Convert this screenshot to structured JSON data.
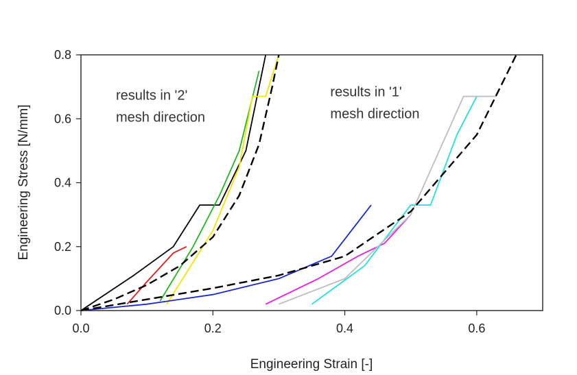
{
  "chart_data": {
    "type": "line",
    "xlabel": "Engineering Strain [-]",
    "ylabel": "Engineering Stress [N/mm]",
    "xlim": [
      0.0,
      0.7
    ],
    "ylim": [
      0.0,
      0.8
    ],
    "xticks": [
      "0.0",
      "0.2",
      "0.4",
      "0.6"
    ],
    "xtick_values": [
      0.0,
      0.2,
      0.4,
      0.6
    ],
    "yticks": [
      "0.0",
      "0.2",
      "0.4",
      "0.6",
      "0.8"
    ],
    "ytick_values": [
      0.0,
      0.2,
      0.4,
      0.6,
      0.8
    ],
    "grid": false,
    "annotations": [
      {
        "lines": [
          "results in '2'",
          "mesh direction"
        ],
        "x": 0.053,
        "y": 0.66
      },
      {
        "lines": [
          "results in '1'",
          "mesh direction"
        ],
        "x": 0.378,
        "y": 0.67
      }
    ],
    "series": [
      {
        "color": "#000000",
        "dash": true,
        "points": [
          [
            0,
            0
          ],
          [
            0.05,
            0.035
          ],
          [
            0.1,
            0.08
          ],
          [
            0.15,
            0.14
          ],
          [
            0.2,
            0.23
          ],
          [
            0.24,
            0.36
          ],
          [
            0.27,
            0.52
          ],
          [
            0.29,
            0.7
          ],
          [
            0.3,
            0.8
          ]
        ]
      },
      {
        "color": "#000000",
        "dash": true,
        "points": [
          [
            0,
            0
          ],
          [
            0.1,
            0.035
          ],
          [
            0.2,
            0.07
          ],
          [
            0.3,
            0.11
          ],
          [
            0.4,
            0.17
          ],
          [
            0.5,
            0.31
          ],
          [
            0.6,
            0.55
          ],
          [
            0.66,
            0.8
          ]
        ]
      },
      {
        "color": "#000000",
        "points": [
          [
            0,
            0
          ],
          [
            0.08,
            0.11
          ],
          [
            0.14,
            0.2
          ],
          [
            0.18,
            0.33
          ],
          [
            0.19,
            0.33
          ],
          [
            0.21,
            0.33
          ],
          [
            0.25,
            0.5
          ],
          [
            0.28,
            0.8
          ]
        ]
      },
      {
        "color": "#e31b1b",
        "points": [
          [
            0.07,
            0.02
          ],
          [
            0.1,
            0.09
          ],
          [
            0.14,
            0.18
          ],
          [
            0.16,
            0.2
          ]
        ]
      },
      {
        "color": "#22b522",
        "points": [
          [
            0.12,
            0.03
          ],
          [
            0.17,
            0.2
          ],
          [
            0.21,
            0.36
          ],
          [
            0.24,
            0.5
          ],
          [
            0.27,
            0.75
          ]
        ]
      },
      {
        "color": "#f2e600",
        "points": [
          [
            0.13,
            0.02
          ],
          [
            0.2,
            0.25
          ],
          [
            0.24,
            0.45
          ],
          [
            0.26,
            0.67
          ],
          [
            0.28,
            0.67
          ],
          [
            0.3,
            0.8
          ]
        ]
      },
      {
        "color": "#1a28d4",
        "points": [
          [
            0,
            0
          ],
          [
            0.1,
            0.02
          ],
          [
            0.2,
            0.05
          ],
          [
            0.3,
            0.1
          ],
          [
            0.38,
            0.17
          ],
          [
            0.44,
            0.33
          ]
        ]
      },
      {
        "color": "#e61ee6",
        "points": [
          [
            0.28,
            0.02
          ],
          [
            0.36,
            0.1
          ],
          [
            0.42,
            0.17
          ],
          [
            0.46,
            0.21
          ],
          [
            0.5,
            0.3
          ]
        ]
      },
      {
        "color": "#1ee0e0",
        "points": [
          [
            0.35,
            0.02
          ],
          [
            0.43,
            0.14
          ],
          [
            0.5,
            0.33
          ],
          [
            0.53,
            0.33
          ],
          [
            0.57,
            0.55
          ],
          [
            0.6,
            0.67
          ]
        ]
      },
      {
        "color": "#bdbdbd",
        "points": [
          [
            0.3,
            0.02
          ],
          [
            0.4,
            0.1
          ],
          [
            0.5,
            0.3
          ],
          [
            0.58,
            0.67
          ],
          [
            0.6,
            0.67
          ],
          [
            0.63,
            0.67
          ]
        ]
      }
    ]
  }
}
